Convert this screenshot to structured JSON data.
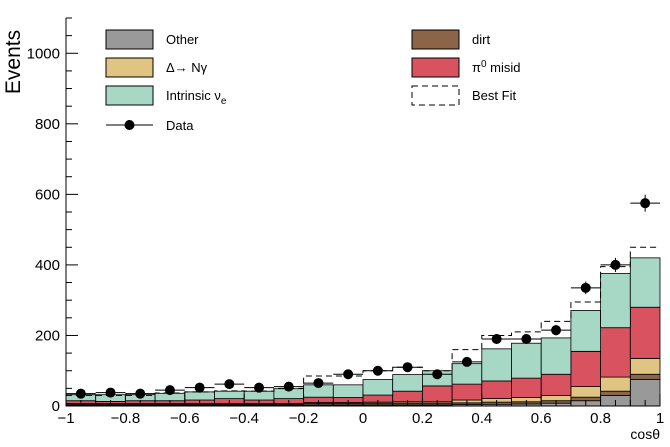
{
  "chart_data": {
    "type": "bar",
    "stacked": true,
    "xlabel": "cosθ",
    "ylabel": "Events",
    "xlim": [
      -1,
      1
    ],
    "ylim": [
      0,
      1100
    ],
    "x_ticks": [
      {
        "v": -1,
        "label": "−1"
      },
      {
        "v": -0.8,
        "label": "−0.8"
      },
      {
        "v": -0.6,
        "label": "−0.6"
      },
      {
        "v": -0.4,
        "label": "−0.4"
      },
      {
        "v": -0.2,
        "label": "−0.2"
      },
      {
        "v": 0,
        "label": "0"
      },
      {
        "v": 0.2,
        "label": "0.2"
      },
      {
        "v": 0.4,
        "label": "0.4"
      },
      {
        "v": 0.6,
        "label": "0.6"
      },
      {
        "v": 0.8,
        "label": "0.8"
      },
      {
        "v": 1,
        "label": "1"
      }
    ],
    "y_ticks": [
      {
        "v": 0,
        "label": "0"
      },
      {
        "v": 200,
        "label": "200"
      },
      {
        "v": 400,
        "label": "400"
      },
      {
        "v": 600,
        "label": "600"
      },
      {
        "v": 800,
        "label": "800"
      },
      {
        "v": 1000,
        "label": "1000"
      }
    ],
    "bin_edges": [
      -1,
      -0.9,
      -0.8,
      -0.7,
      -0.6,
      -0.5,
      -0.4,
      -0.3,
      -0.2,
      -0.1,
      0,
      0.1,
      0.2,
      0.3,
      0.4,
      0.5,
      0.6,
      0.7,
      0.8,
      0.9,
      1
    ],
    "bin_centers": [
      -0.95,
      -0.85,
      -0.75,
      -0.65,
      -0.55,
      -0.45,
      -0.35,
      -0.25,
      -0.15,
      -0.05,
      0.05,
      0.15,
      0.25,
      0.35,
      0.45,
      0.55,
      0.65,
      0.75,
      0.85,
      0.95
    ],
    "series": [
      {
        "name": "Other",
        "color": "#999999",
        "values": [
          2,
          2,
          2,
          2,
          2,
          2,
          2,
          2,
          3,
          3,
          3,
          3,
          3,
          4,
          5,
          6,
          8,
          15,
          30,
          75
        ]
      },
      {
        "name": "dirt",
        "color": "#8c6448",
        "values": [
          3,
          3,
          3,
          3,
          3,
          3,
          3,
          3,
          4,
          4,
          5,
          5,
          5,
          5,
          6,
          6,
          7,
          10,
          12,
          15
        ]
      },
      {
        "name": "Δ→ Nγ",
        "color": "#e0c582",
        "values": [
          2,
          2,
          2,
          2,
          2,
          2,
          2,
          2,
          3,
          3,
          3,
          4,
          4,
          8,
          10,
          12,
          15,
          30,
          40,
          45
        ]
      },
      {
        "name": "π⁰ misid",
        "color": "#d9525f",
        "values": [
          8,
          6,
          8,
          8,
          10,
          14,
          10,
          14,
          15,
          14,
          20,
          30,
          45,
          45,
          50,
          55,
          60,
          100,
          140,
          145
        ]
      },
      {
        "name": "Intrinsic νe",
        "color": "#a7d8c6",
        "values": [
          17,
          19,
          17,
          21,
          23,
          21,
          25,
          28,
          35,
          36,
          44,
          47,
          43,
          58,
          91,
          99,
          103,
          116,
          154,
          140
        ]
      }
    ],
    "best_fit": [
      30,
      30,
      30,
      37,
      40,
      43,
      42,
      50,
      85,
      85,
      100,
      110,
      100,
      160,
      200,
      210,
      240,
      295,
      395,
      450
    ],
    "data_points": {
      "name": "Data",
      "values": [
        35,
        38,
        35,
        45,
        52,
        62,
        52,
        55,
        65,
        90,
        100,
        110,
        90,
        125,
        190,
        190,
        215,
        335,
        400,
        575
      ],
      "errors": [
        6,
        6,
        6,
        7,
        7,
        8,
        7,
        7,
        8,
        10,
        10,
        10,
        10,
        11,
        14,
        14,
        15,
        18,
        20,
        24
      ]
    },
    "legend": [
      {
        "label": "Other",
        "kind": "fill",
        "color": "#999999"
      },
      {
        "label": "dirt",
        "kind": "fill",
        "color": "#8c6448"
      },
      {
        "label": "Δ→ Nγ",
        "kind": "fill",
        "color": "#e0c582"
      },
      {
        "label": "π⁰ misid",
        "kind": "fill",
        "color": "#d9525f"
      },
      {
        "label": "Intrinsic νe",
        "kind": "fill",
        "color": "#a7d8c6"
      },
      {
        "label": "Best Fit",
        "kind": "dashed"
      },
      {
        "label": "Data",
        "kind": "marker"
      }
    ]
  }
}
